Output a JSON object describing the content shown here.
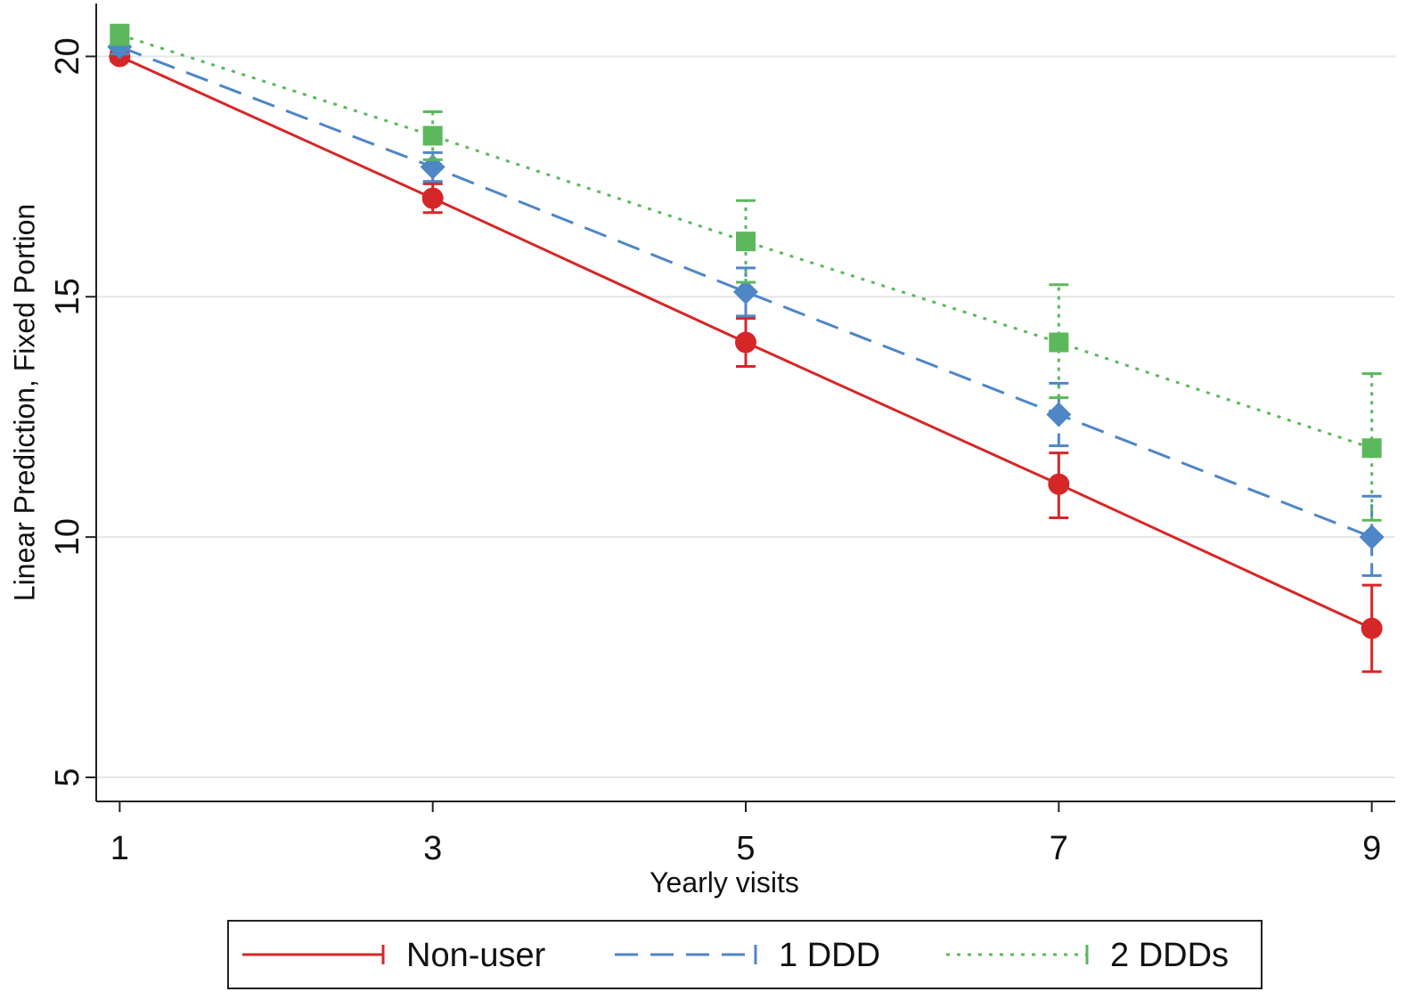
{
  "chart_data": {
    "type": "line",
    "title": "",
    "xlabel": "Yearly visits",
    "ylabel": "Linear Prediction, Fixed Portion",
    "x": [
      1,
      3,
      5,
      7,
      9
    ],
    "x_ticks": [
      "1",
      "3",
      "5",
      "7",
      "9"
    ],
    "y_ticks": [
      "5",
      "10",
      "15",
      "20"
    ],
    "xlim": [
      0.85,
      9.15
    ],
    "ylim": [
      4.5,
      21.1
    ],
    "grid": true,
    "legend_position": "bottom",
    "series": [
      {
        "name": "Non-user",
        "color": "#d62728",
        "line_style": "solid",
        "marker": "circle",
        "values": [
          20.0,
          17.05,
          14.05,
          11.1,
          8.1
        ],
        "ci_lower": [
          19.9,
          16.75,
          13.55,
          10.4,
          7.2
        ],
        "ci_upper": [
          20.1,
          17.35,
          14.55,
          11.75,
          9.0
        ]
      },
      {
        "name": "1 DDD",
        "color": "#4f86c6",
        "line_style": "dashed",
        "marker": "diamond",
        "values": [
          20.2,
          17.7,
          15.1,
          12.55,
          10.0
        ],
        "ci_lower": [
          20.05,
          17.4,
          14.6,
          11.9,
          9.2
        ],
        "ci_upper": [
          20.35,
          18.0,
          15.6,
          13.2,
          10.85
        ]
      },
      {
        "name": "2 DDDs",
        "color": "#5cb85c",
        "line_style": "dotted",
        "marker": "square",
        "values": [
          20.45,
          18.35,
          16.15,
          14.05,
          11.85
        ],
        "ci_lower": [
          20.25,
          17.85,
          15.3,
          12.9,
          10.35
        ],
        "ci_upper": [
          20.65,
          18.85,
          17.0,
          15.25,
          13.4
        ]
      }
    ]
  }
}
